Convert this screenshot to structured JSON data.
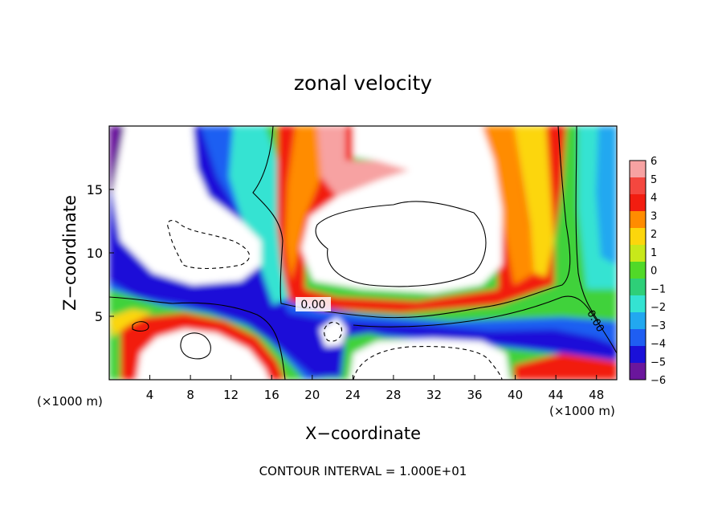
{
  "chart_data": {
    "type": "heatmap",
    "title": "zonal velocity",
    "xlabel": "X−coordinate",
    "ylabel": "Z−coordinate",
    "x_unit_left": "(×1000 m)",
    "x_unit_right": "(×1000 m)",
    "footer": "CONTOUR INTERVAL = 1.000E+01",
    "xlim": [
      0,
      50
    ],
    "ylim": [
      0,
      20
    ],
    "x_ticks": [
      4,
      8,
      12,
      16,
      20,
      24,
      28,
      32,
      36,
      40,
      44,
      48
    ],
    "y_ticks": [
      5,
      10,
      15
    ],
    "colorbar": {
      "labels": [
        "6",
        "5",
        "4",
        "3",
        "2",
        "1",
        "0",
        "−1",
        "−2",
        "−3",
        "−4",
        "−5",
        "−6"
      ],
      "range": [
        -6,
        6
      ],
      "colors": [
        "#f7a2a2",
        "#f4473f",
        "#f21d10",
        "#ff8c00",
        "#fcd60c",
        "#c8e81a",
        "#51d928",
        "#2ecf78",
        "#34e3d2",
        "#22a8f0",
        "#1f5ef2",
        "#1a10d8",
        "#6a169c"
      ]
    },
    "contour_labels": [
      "0.00",
      "0.00"
    ],
    "field_description_regions": [
      {
        "name": "upper-left core",
        "value": -6
      },
      {
        "name": "upper-center core",
        "value": 6
      },
      {
        "name": "right column",
        "value": 0
      }
    ]
  }
}
